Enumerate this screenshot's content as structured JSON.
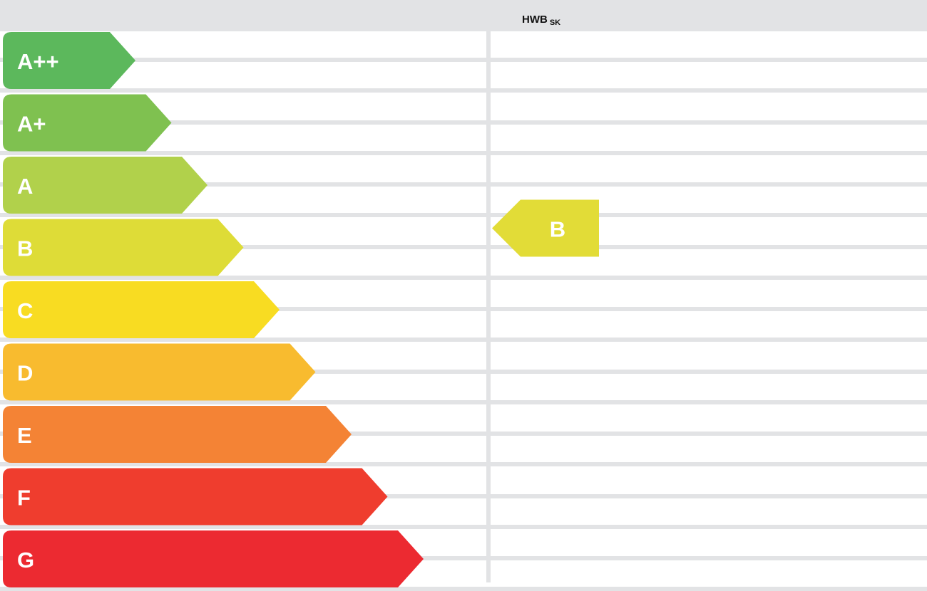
{
  "header": {
    "title": "HWB",
    "subscript": "SK"
  },
  "chart_data": {
    "type": "bar",
    "categories": [
      "A++",
      "A+",
      "A",
      "B",
      "C",
      "D",
      "E",
      "F",
      "G"
    ],
    "colors": [
      "#5cb85c",
      "#7fc150",
      "#b1d14b",
      "#dedc37",
      "#f8dc22",
      "#f8bb2f",
      "#f48335",
      "#ef3d2e",
      "#ec2a31"
    ],
    "indicator": {
      "label": "B",
      "color": "#e2dc37"
    }
  }
}
